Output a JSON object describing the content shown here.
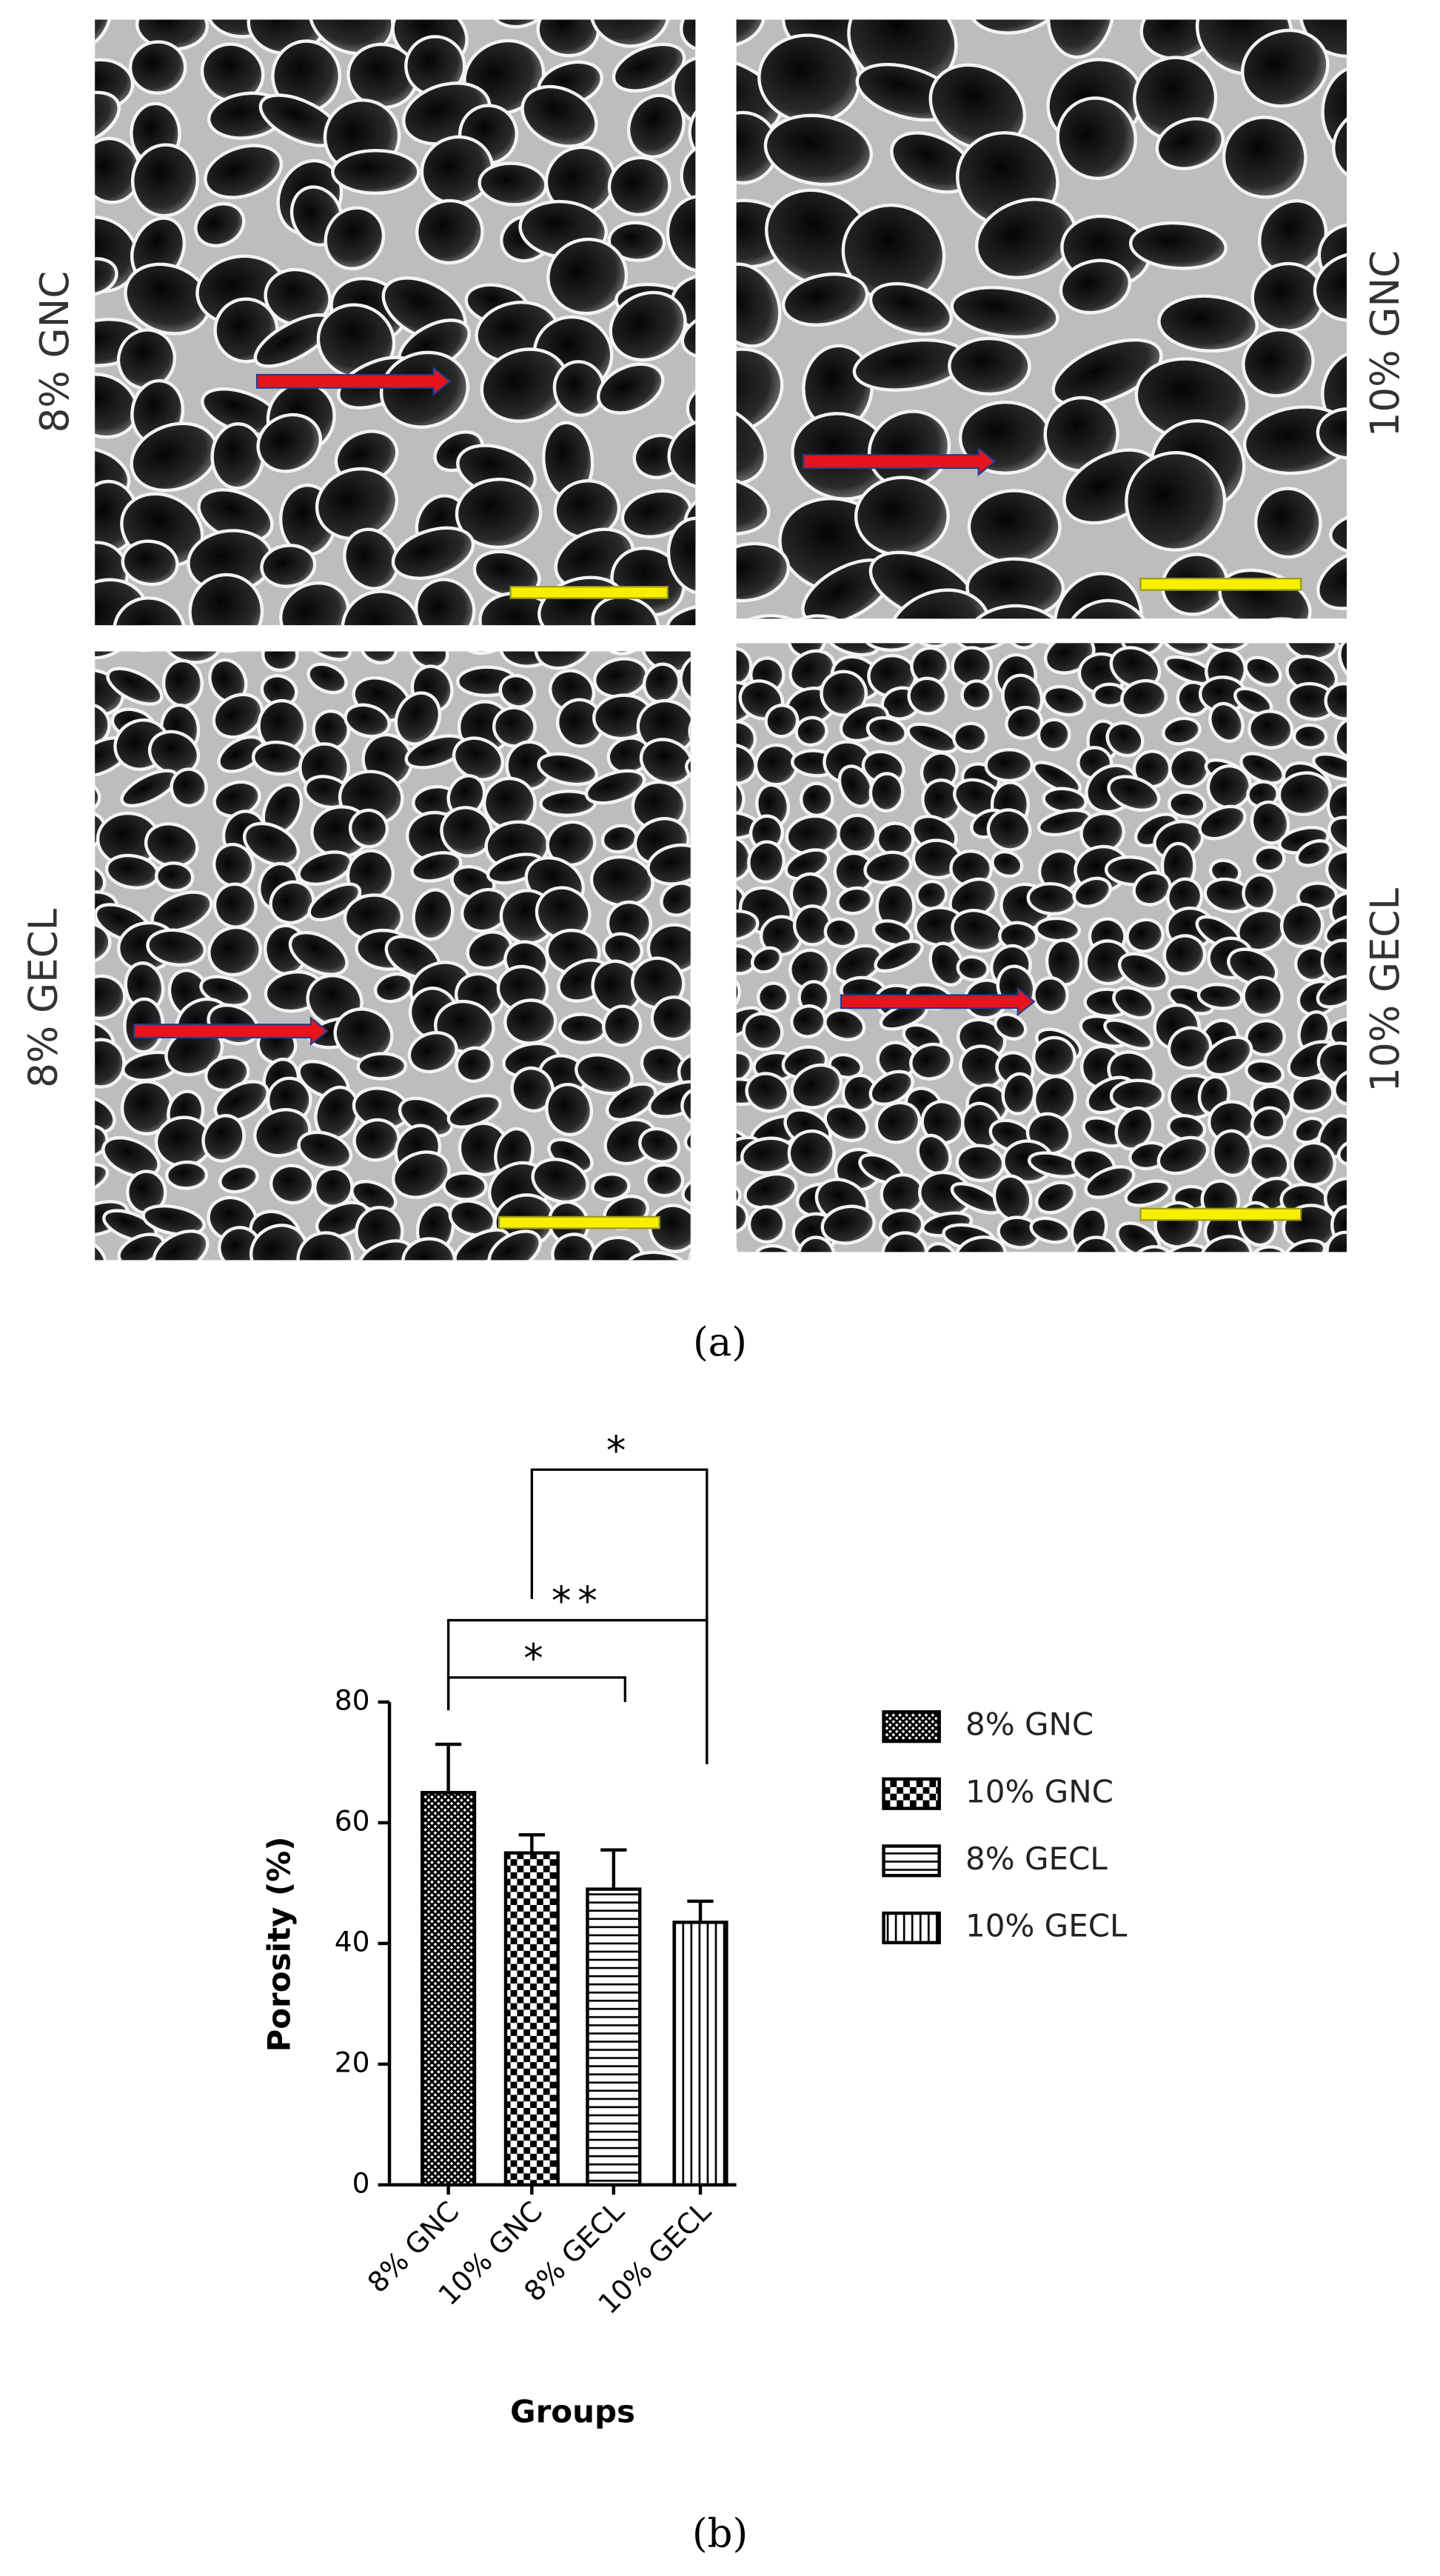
{
  "figure": {
    "panels": [
      "8% GNC",
      "10% GNC",
      "8% GECL",
      "10% GECL"
    ],
    "caption_a": "(a)",
    "caption_b": "(b)"
  },
  "chart_data": {
    "type": "bar",
    "ylabel": "Porosity (%)",
    "xlabel": "Groups",
    "categories": [
      "8% GNC",
      "10% GNC",
      "8% GECL",
      "10% GECL"
    ],
    "values": [
      65,
      55,
      49,
      43.5
    ],
    "errors": [
      8,
      3,
      6.5,
      3.5
    ],
    "patterns": [
      "crosshatch",
      "checker",
      "hlines",
      "vlines"
    ],
    "color": "#000000",
    "ylim": [
      0,
      80
    ],
    "yticks": [
      0,
      20,
      40,
      60,
      80
    ],
    "legend": "right",
    "annotations": [
      {
        "label": "*",
        "between": [
          0,
          2
        ]
      },
      {
        "label": "**",
        "between": [
          0,
          3
        ]
      },
      {
        "label": "*",
        "between": [
          1,
          3
        ]
      }
    ]
  }
}
